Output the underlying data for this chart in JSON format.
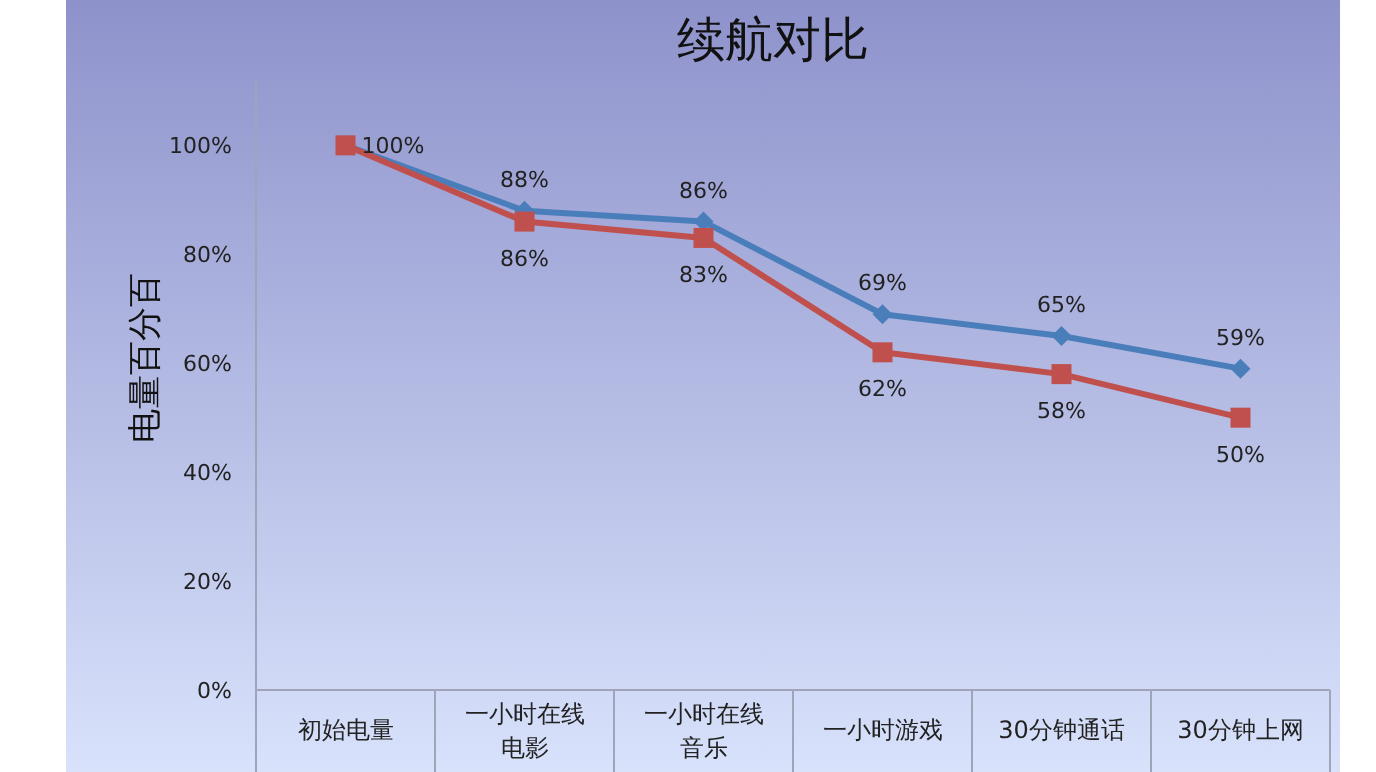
{
  "chart_data": {
    "type": "line",
    "title": "续航对比",
    "ylabel": "电量百分百",
    "categories": [
      "初始电量",
      "一小时在线电影",
      "一小时在线音乐",
      "一小时游戏",
      "30分钟通话",
      "30分钟上网"
    ],
    "series": [
      {
        "color": "#4a7ebb",
        "marker": "diamond",
        "values": [
          100,
          88,
          86,
          69,
          65,
          59
        ],
        "value_labels": [
          null,
          "88%",
          "86%",
          "69%",
          "65%",
          "59%"
        ]
      },
      {
        "color": "#c0504d",
        "marker": "square",
        "values": [
          100,
          86,
          83,
          62,
          58,
          50
        ],
        "value_labels": [
          "100%",
          "86%",
          "83%",
          "62%",
          "58%",
          "50%"
        ]
      }
    ],
    "ylim": [
      0,
      112
    ],
    "yticks": [
      {
        "value": 0,
        "label": "0%"
      },
      {
        "value": 20,
        "label": "20%"
      },
      {
        "value": 40,
        "label": "40%"
      },
      {
        "value": 60,
        "label": "60%"
      },
      {
        "value": 80,
        "label": "80%"
      },
      {
        "value": 100,
        "label": "100%"
      }
    ],
    "grid": false
  }
}
